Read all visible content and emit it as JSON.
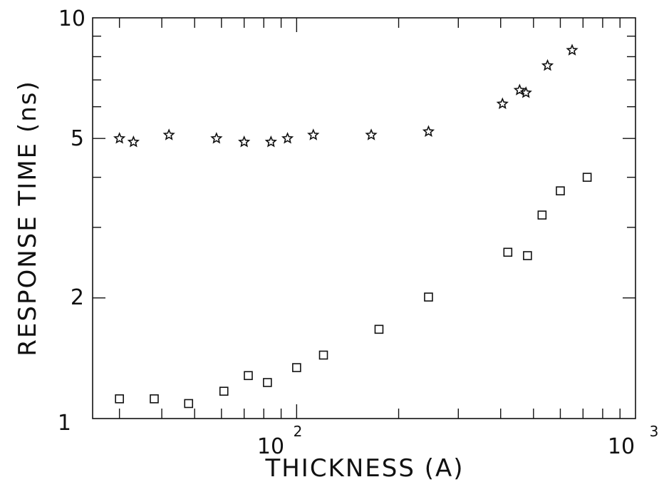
{
  "chart_data": {
    "type": "scatter",
    "title": "",
    "xlabel": "THICKNESS  (A)",
    "ylabel": "RESPONSE  TIME  (ns)",
    "x_scale": "log",
    "y_scale": "log",
    "xlim": [
      25,
      1000
    ],
    "ylim": [
      1,
      10
    ],
    "grid": false,
    "x_tick_labels": [
      {
        "value": 100,
        "base": "10",
        "exp": "2"
      },
      {
        "value": 1000,
        "base": "10",
        "exp": "3"
      }
    ],
    "y_tick_labels": [
      {
        "value": 10,
        "label": "10"
      },
      {
        "value": 5,
        "label": "5"
      },
      {
        "value": 2,
        "label": "2"
      },
      {
        "value": 1,
        "label": "1"
      }
    ],
    "series": [
      {
        "marker": "star",
        "points": [
          {
            "x": 30,
            "y": 5.0
          },
          {
            "x": 33,
            "y": 4.9
          },
          {
            "x": 42,
            "y": 5.1
          },
          {
            "x": 58,
            "y": 5.0
          },
          {
            "x": 70,
            "y": 4.9
          },
          {
            "x": 84,
            "y": 4.9
          },
          {
            "x": 94,
            "y": 5.0
          },
          {
            "x": 112,
            "y": 5.1
          },
          {
            "x": 166,
            "y": 5.1
          },
          {
            "x": 245,
            "y": 5.2
          },
          {
            "x": 405,
            "y": 6.1
          },
          {
            "x": 455,
            "y": 6.6
          },
          {
            "x": 475,
            "y": 6.5
          },
          {
            "x": 550,
            "y": 7.6
          },
          {
            "x": 650,
            "y": 8.3
          }
        ]
      },
      {
        "marker": "square",
        "points": [
          {
            "x": 30,
            "y": 1.12
          },
          {
            "x": 38,
            "y": 1.12
          },
          {
            "x": 48,
            "y": 1.09
          },
          {
            "x": 61,
            "y": 1.17
          },
          {
            "x": 72,
            "y": 1.28
          },
          {
            "x": 82,
            "y": 1.23
          },
          {
            "x": 100,
            "y": 1.34
          },
          {
            "x": 120,
            "y": 1.44
          },
          {
            "x": 175,
            "y": 1.67
          },
          {
            "x": 245,
            "y": 2.01
          },
          {
            "x": 420,
            "y": 2.6
          },
          {
            "x": 480,
            "y": 2.55
          },
          {
            "x": 530,
            "y": 3.22
          },
          {
            "x": 600,
            "y": 3.7
          },
          {
            "x": 720,
            "y": 4.0
          }
        ]
      }
    ]
  }
}
